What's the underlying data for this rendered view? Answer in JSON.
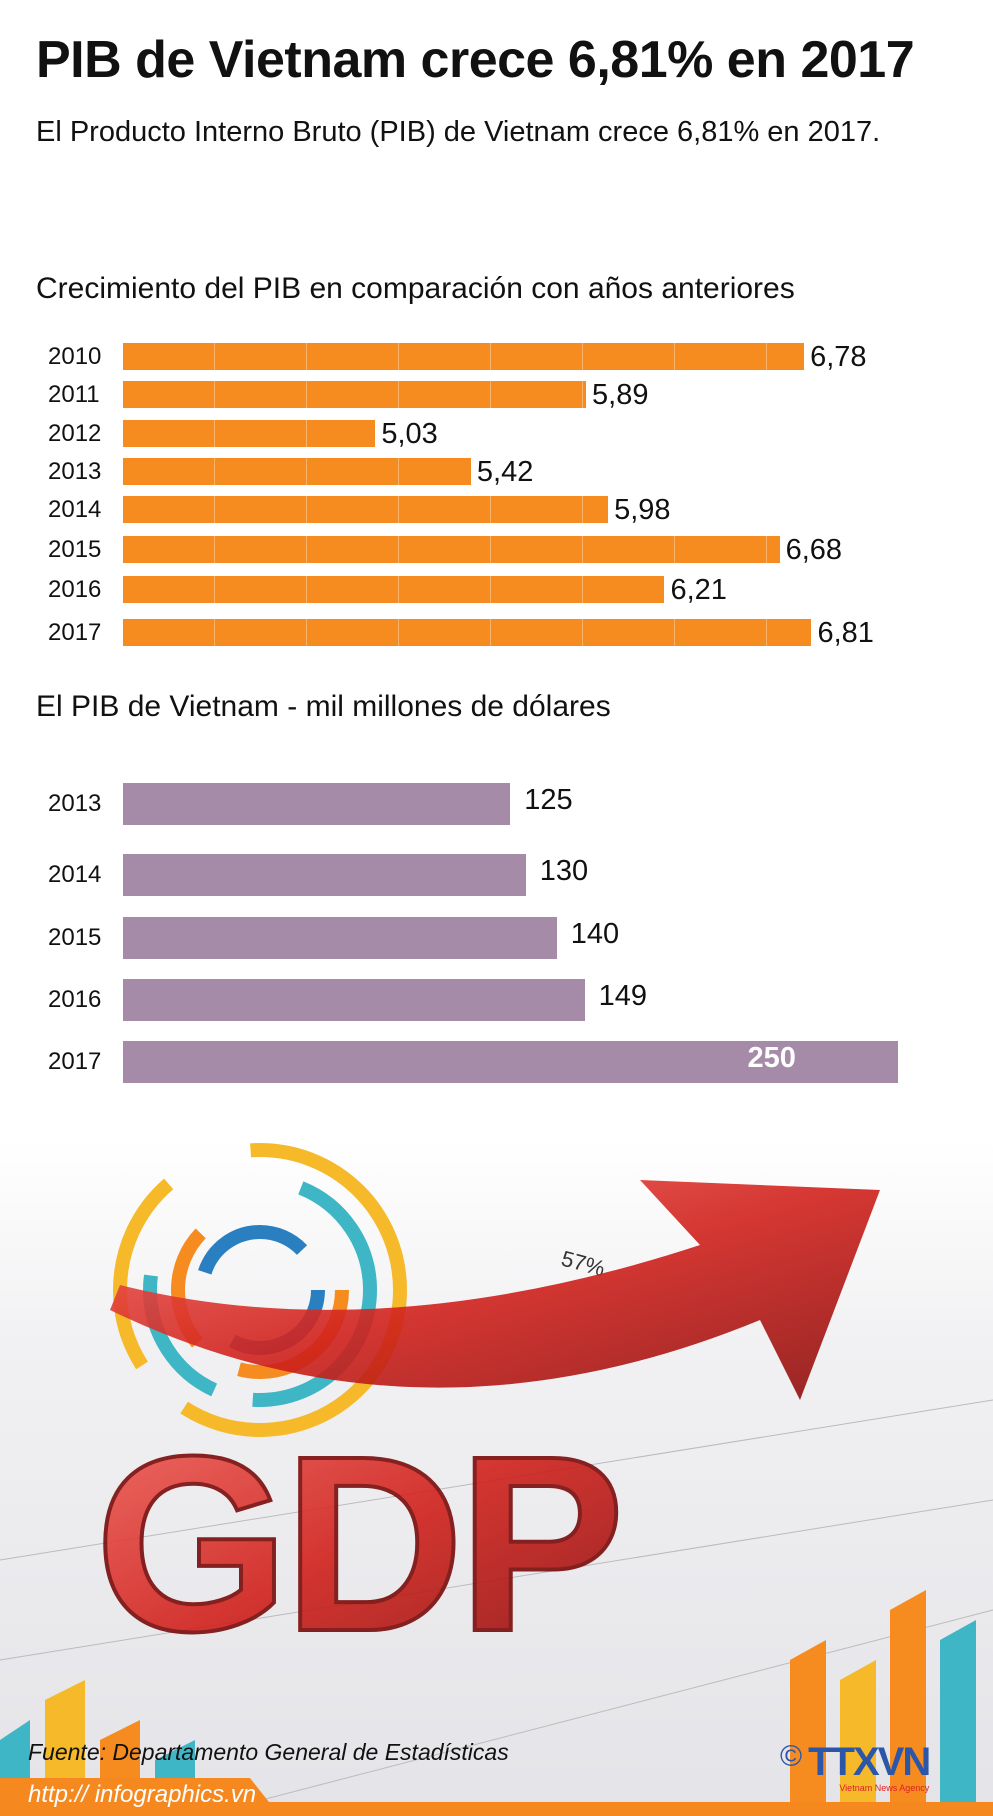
{
  "header": {
    "title": "PIB de Vietnam crece 6,81% en 2017",
    "subtitle": "El Producto Interno Bruto (PIB) de Vietnam crece 6,81% en 2017."
  },
  "chart_data": [
    {
      "type": "bar",
      "orientation": "horizontal",
      "title": "Crecimiento del PIB en comparación con años anteriores",
      "categories": [
        "2010",
        "2011",
        "2012",
        "2013",
        "2014",
        "2015",
        "2016",
        "2017"
      ],
      "values": [
        6.78,
        5.89,
        5.03,
        5.42,
        5.98,
        6.68,
        6.21,
        6.81
      ],
      "value_labels": [
        "6,78",
        "5,89",
        "5,03",
        "5,42",
        "5,98",
        "6,68",
        "6,21",
        "6,81"
      ],
      "xlim": [
        4,
        7
      ],
      "color": "#f68b1f"
    },
    {
      "type": "bar",
      "orientation": "horizontal",
      "title": "El PIB de Vietnam - mil millones de dólares",
      "categories": [
        "2013",
        "2014",
        "2015",
        "2016",
        "2017"
      ],
      "values": [
        125,
        130,
        140,
        149,
        250
      ],
      "value_labels": [
        "125",
        "130",
        "140",
        "149",
        "250"
      ],
      "xlim": [
        0,
        255
      ],
      "color": "#a58ba8"
    }
  ],
  "photo": {
    "percent_label": "57%",
    "letters": "GDP"
  },
  "footer": {
    "source": "Fuente: Departamento General de Estadísticas",
    "url": "http:// infographics.vn",
    "logo": "TTXVN",
    "logo_sub": "Vietnam News Agency",
    "copyright": "©"
  }
}
